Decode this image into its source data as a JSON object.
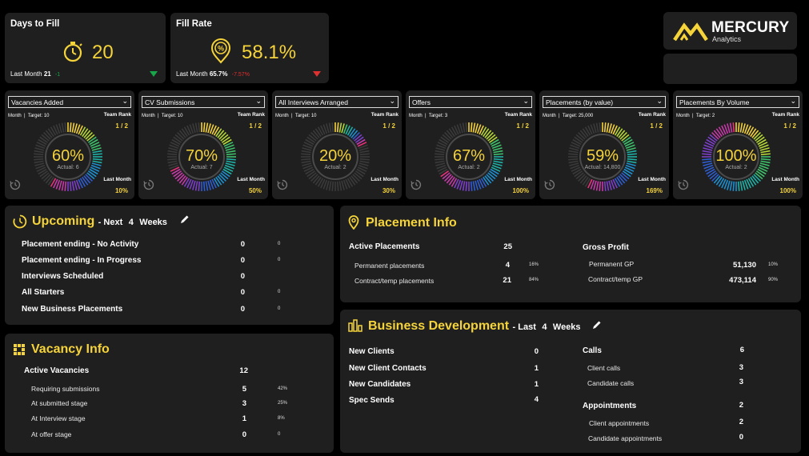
{
  "kpi": {
    "days_to_fill": {
      "title": "Days to Fill",
      "value": "20",
      "last_month_label": "Last Month",
      "last_month_value": "21",
      "delta": "-1",
      "delta_color": "#18a64a",
      "trend": "down-green"
    },
    "fill_rate": {
      "title": "Fill Rate",
      "value": "58.1%",
      "last_month_label": "Last Month",
      "last_month_value": "65.7%",
      "delta": "-7.57%",
      "delta_color": "#e03030",
      "trend": "down-red"
    }
  },
  "brand": {
    "name": "MERCURY",
    "sub": "Analytics",
    "color": "#f5d33a"
  },
  "cards": [
    {
      "dropdown": "Vacancies Added",
      "period": "Month",
      "target": "Target: 10",
      "rank_label": "Team Rank",
      "rank": "1 / 2",
      "pct": "60%",
      "pct_value": 0.6,
      "actual": "Actual: 6",
      "last_month_label": "Last Month",
      "last_month": "10%"
    },
    {
      "dropdown": "CV Submissions",
      "period": "Month",
      "target": "Target: 10",
      "rank_label": "Team Rank",
      "rank": "1 / 2",
      "pct": "70%",
      "pct_value": 0.7,
      "actual": "Actual: 7",
      "last_month_label": "Last Month",
      "last_month": "50%"
    },
    {
      "dropdown": "All Interviews Arranged",
      "period": "Month",
      "target": "Target: 10",
      "rank_label": "Team Rank",
      "rank": "1 / 2",
      "pct": "20%",
      "pct_value": 0.2,
      "actual": "Actual: 2",
      "last_month_label": "Last Month",
      "last_month": "30%"
    },
    {
      "dropdown": "Offers",
      "period": "Month",
      "target": "Target: 3",
      "rank_label": "Team Rank",
      "rank": "1 / 2",
      "pct": "67%",
      "pct_value": 0.67,
      "actual": "Actual: 2",
      "last_month_label": "Last Month",
      "last_month": "100%"
    },
    {
      "dropdown": "Placements (by value)",
      "period": "Month",
      "target": "Target: 25,000",
      "rank_label": "Team Rank",
      "rank": "1 / 2",
      "pct": "59%",
      "pct_value": 0.59,
      "actual": "Actual: 14,800",
      "last_month_label": "Last Month",
      "last_month": "169%"
    },
    {
      "dropdown": "Placements By Volume",
      "period": "Month",
      "target": "Target: 2",
      "rank_label": "Team Rank",
      "rank": "1 / 2",
      "pct": "100%",
      "pct_value": 1.0,
      "actual": "Actual: 2",
      "last_month_label": "Last Month",
      "last_month": "100%"
    }
  ],
  "upcoming": {
    "title": "Upcoming",
    "subtitle_prefix": "- Next",
    "weeks_n": "4",
    "weeks_label": "Weeks",
    "rows": [
      {
        "label": "Placement ending - No Activity",
        "value": "0",
        "extra": "0"
      },
      {
        "label": "Placement ending - In Progress",
        "value": "0",
        "extra": "0"
      },
      {
        "label": "Interviews Scheduled",
        "value": "0",
        "extra": ""
      },
      {
        "label": "All Starters",
        "value": "0",
        "extra": "0"
      },
      {
        "label": "New Business Placements",
        "value": "0",
        "extra": "0"
      }
    ]
  },
  "vacancy": {
    "title": "Vacancy Info",
    "active_label": "Active Vacancies",
    "active_value": "12",
    "rows": [
      {
        "label": "Requiring submissions",
        "value": "5",
        "pct": "42%"
      },
      {
        "label": "At submitted stage",
        "value": "3",
        "pct": "25%"
      },
      {
        "label": "At Interview stage",
        "value": "1",
        "pct": "8%"
      },
      {
        "label": "At offer stage",
        "value": "0",
        "pct": "0"
      }
    ]
  },
  "placement": {
    "title": "Placement Info",
    "active_label": "Active Placements",
    "active_value": "25",
    "rows": [
      {
        "label": "Permanent placements",
        "value": "4",
        "pct": "16%"
      },
      {
        "label": "Contract/temp placements",
        "value": "21",
        "pct": "84%"
      }
    ],
    "gp_label": "Gross Profit",
    "gp_rows": [
      {
        "label": "Permanent GP",
        "value": "51,130",
        "pct": "10%"
      },
      {
        "label": "Contract/temp GP",
        "value": "473,114",
        "pct": "90%"
      }
    ]
  },
  "bizdev": {
    "title": "Business Development",
    "subtitle_prefix": "- Last",
    "weeks_n": "4",
    "weeks_label": "Weeks",
    "left": [
      {
        "label": "New Clients",
        "value": "0"
      },
      {
        "label": "New Client Contacts",
        "value": "1"
      },
      {
        "label": "New Candidates",
        "value": "1"
      },
      {
        "label": "Spec Sends",
        "value": "4"
      }
    ],
    "calls_label": "Calls",
    "calls_value": "6",
    "calls_rows": [
      {
        "label": "Client calls",
        "value": "3"
      },
      {
        "label": "Candidate calls",
        "value": "3"
      }
    ],
    "appt_label": "Appointments",
    "appt_value": "2",
    "appt_rows": [
      {
        "label": "Client appointments",
        "value": "2"
      },
      {
        "label": "Candidate appointments",
        "value": "0"
      }
    ]
  }
}
